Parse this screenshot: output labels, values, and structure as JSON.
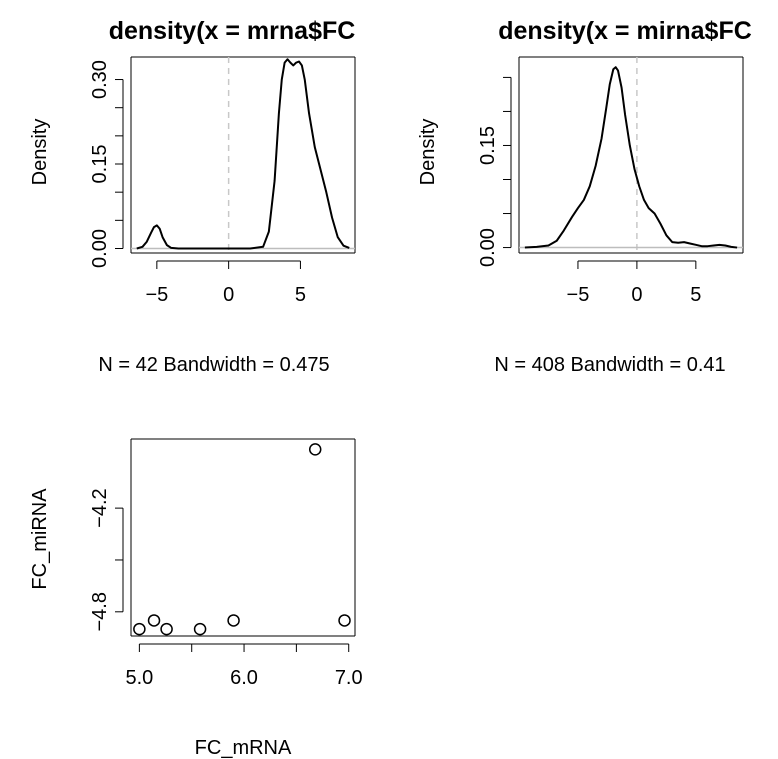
{
  "chart_data": [
    {
      "type": "line",
      "title": "density(x = mrna$FC",
      "xlabel": "N = 42   Bandwidth = 0.475",
      "ylabel": "Density",
      "xlim": [
        -6.8,
        8.8
      ],
      "ylim": [
        -0.008,
        0.34
      ],
      "xticks": [
        -5,
        0,
        5
      ],
      "xtick_labels": [
        "−5",
        "0",
        "5"
      ],
      "yticks": [
        0.0,
        0.15,
        0.3
      ],
      "ytick_labels": [
        "0.00",
        "0.15",
        "0.30"
      ],
      "yticks_minor": [
        0.05,
        0.1,
        0.2,
        0.25
      ],
      "vline": 0,
      "hline": 0,
      "series": [
        {
          "x": [
            -6.4,
            -6.0,
            -5.7,
            -5.4,
            -5.2,
            -5.0,
            -4.8,
            -4.6,
            -4.3,
            -4.0,
            -3.5,
            -2.0,
            0.0,
            1.5,
            2.4,
            2.8,
            3.2,
            3.5,
            3.7,
            3.9,
            4.1,
            4.3,
            4.5,
            4.7,
            4.9,
            5.1,
            5.3,
            5.6,
            6.0,
            6.4,
            6.8,
            7.2,
            7.6,
            8.0,
            8.4
          ],
          "y": [
            0.0,
            0.003,
            0.012,
            0.028,
            0.038,
            0.041,
            0.035,
            0.02,
            0.006,
            0.001,
            0.0,
            0.0,
            0.0,
            0.0,
            0.003,
            0.03,
            0.12,
            0.24,
            0.3,
            0.33,
            0.336,
            0.33,
            0.325,
            0.33,
            0.332,
            0.325,
            0.3,
            0.24,
            0.18,
            0.14,
            0.1,
            0.055,
            0.02,
            0.005,
            0.001
          ]
        }
      ]
    },
    {
      "type": "line",
      "title": "density(x = mirna$FC",
      "xlabel": "N = 408   Bandwidth = 0.41",
      "ylabel": "Density",
      "xlim": [
        -10.0,
        9.0
      ],
      "ylim": [
        -0.008,
        0.28
      ],
      "xticks": [
        -5,
        0,
        5
      ],
      "xtick_labels": [
        "−5",
        "0",
        "5"
      ],
      "yticks": [
        0.0,
        0.15
      ],
      "ytick_labels": [
        "0.00",
        "0.15"
      ],
      "yticks_minor": [
        0.05,
        0.1,
        0.2,
        0.25
      ],
      "vline": 0,
      "hline": 0,
      "series": [
        {
          "x": [
            -9.5,
            -8.5,
            -7.5,
            -6.8,
            -6.2,
            -5.5,
            -5.0,
            -4.5,
            -4.0,
            -3.5,
            -3.0,
            -2.6,
            -2.3,
            -2.0,
            -1.8,
            -1.6,
            -1.3,
            -1.0,
            -0.6,
            -0.2,
            0.2,
            0.6,
            1.0,
            1.5,
            2.0,
            2.5,
            3.0,
            3.5,
            4.0,
            4.5,
            5.0,
            5.5,
            6.0,
            6.5,
            7.0,
            7.5,
            8.0,
            8.5
          ],
          "y": [
            0.0,
            0.001,
            0.003,
            0.01,
            0.025,
            0.045,
            0.058,
            0.07,
            0.09,
            0.12,
            0.16,
            0.205,
            0.24,
            0.262,
            0.265,
            0.26,
            0.235,
            0.195,
            0.15,
            0.115,
            0.09,
            0.07,
            0.058,
            0.05,
            0.035,
            0.018,
            0.008,
            0.007,
            0.008,
            0.006,
            0.004,
            0.002,
            0.002,
            0.003,
            0.004,
            0.003,
            0.001,
            0.0
          ]
        }
      ]
    },
    {
      "type": "scatter",
      "xlabel": "FC_mRNA",
      "ylabel": "FC_miRNA",
      "xlim": [
        4.92,
        7.06
      ],
      "ylim": [
        -4.94,
        -3.8
      ],
      "xticks": [
        5.0,
        6.0,
        7.0
      ],
      "xtick_labels": [
        "5.0",
        "6.0",
        "7.0"
      ],
      "xticks_minor": [
        5.5,
        6.5
      ],
      "yticks": [
        -4.8,
        -4.2
      ],
      "ytick_labels": [
        "−4.8",
        "−4.2"
      ],
      "yticks_minor": [
        -4.5
      ],
      "x": [
        5.0,
        5.14,
        5.26,
        5.58,
        5.9,
        6.68,
        6.96
      ],
      "y": [
        -4.9,
        -4.85,
        -4.9,
        -4.9,
        -4.85,
        -3.86,
        -4.85
      ]
    }
  ]
}
